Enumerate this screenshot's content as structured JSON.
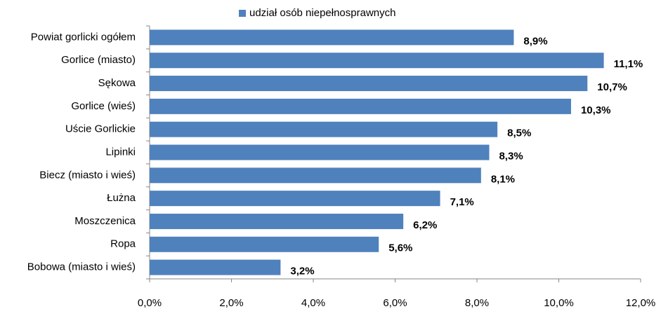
{
  "chart_data": {
    "type": "bar",
    "orientation": "horizontal",
    "legend": "top",
    "series": [
      {
        "name": "udział osób niepełnosprawnych",
        "color": "#4f81bd",
        "values": [
          8.9,
          11.1,
          10.7,
          10.3,
          8.5,
          8.3,
          8.1,
          7.1,
          6.2,
          5.6,
          3.2
        ],
        "value_labels": [
          "8,9%",
          "11,1%",
          "10,7%",
          "10,3%",
          "8,5%",
          "8,3%",
          "8,1%",
          "7,1%",
          "6,2%",
          "5,6%",
          "3,2%"
        ]
      }
    ],
    "categories": [
      "Powiat gorlicki ogółem",
      "Gorlice (miasto)",
      "Sękowa",
      "Gorlice (wieś)",
      "Uście Gorlickie",
      "Lipinki",
      "Biecz (miasto  i wieś)",
      "Łużna",
      "Moszczenica",
      "Ropa",
      "Bobowa (miasto  i wieś)"
    ],
    "xlim": [
      0,
      12
    ],
    "xticks": [
      {
        "value": 0,
        "label": "0,0%"
      },
      {
        "value": 2,
        "label": "2,0%"
      },
      {
        "value": 4,
        "label": "4,0%"
      },
      {
        "value": 6,
        "label": "6,0%"
      },
      {
        "value": 8,
        "label": "8,0%"
      },
      {
        "value": 10,
        "label": "10,0%"
      },
      {
        "value": 12,
        "label": "12,0%"
      }
    ],
    "grid": false
  }
}
